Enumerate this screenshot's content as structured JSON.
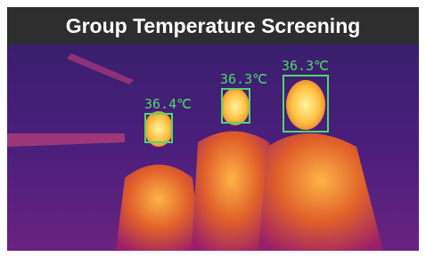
{
  "header": {
    "title": "Group Temperature Screening"
  },
  "detections": [
    {
      "label": "36.4℃"
    },
    {
      "label": "36.3℃"
    },
    {
      "label": "36.3℃"
    }
  ]
}
